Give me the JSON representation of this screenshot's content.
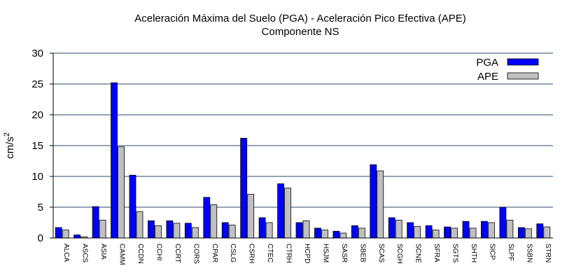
{
  "chart_data": {
    "type": "bar",
    "title": "Aceleración Máxima del Suelo (PGA) -  Aceleración Pico Efectiva (APE)",
    "subtitle": "Componente NS",
    "xlabel": "",
    "ylabel": "cm/s",
    "ylabel_sup": "2",
    "ylim": [
      0,
      30
    ],
    "yticks": [
      0,
      5,
      10,
      15,
      20,
      25,
      30
    ],
    "grid": true,
    "legend_position": "top-right",
    "categories": [
      "ALCA",
      "ASCS",
      "ASIA",
      "CAMM",
      "CCDN",
      "CCHI",
      "CCRT",
      "CORS",
      "CPAR",
      "CSLG",
      "CSRH",
      "CTEC",
      "CTRH",
      "HCPD",
      "HSJM",
      "SASR",
      "SBEB",
      "SCAS",
      "SCGH",
      "SCNE",
      "SFRA",
      "SGTS",
      "SHTH",
      "SICP",
      "SLPF",
      "SSBN",
      "STRN"
    ],
    "series": [
      {
        "name": "PGA",
        "color": "#0000ff",
        "values": [
          1.7,
          0.5,
          5.1,
          25.2,
          10.2,
          2.8,
          2.8,
          2.4,
          6.6,
          2.5,
          16.2,
          3.3,
          8.8,
          2.5,
          1.6,
          1.1,
          2.0,
          11.9,
          3.3,
          2.5,
          2.0,
          1.8,
          2.7,
          2.7,
          5.0,
          1.7,
          2.3
        ]
      },
      {
        "name": "APE",
        "color": "#c0c0c0",
        "values": [
          1.3,
          0.2,
          2.9,
          14.8,
          4.3,
          2.0,
          2.4,
          1.7,
          5.4,
          2.1,
          7.1,
          2.5,
          8.1,
          2.8,
          1.3,
          0.8,
          1.6,
          10.9,
          2.9,
          1.9,
          1.3,
          1.6,
          1.6,
          2.5,
          2.9,
          1.5,
          1.8
        ]
      }
    ]
  }
}
